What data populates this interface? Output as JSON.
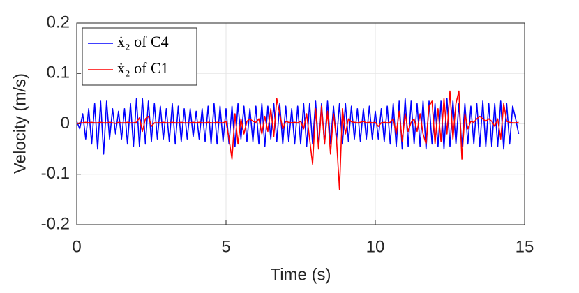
{
  "chart_data": {
    "type": "line",
    "xlabel": "Time (s)",
    "ylabel": "Velocity (m/s)",
    "xlim": [
      0,
      15
    ],
    "ylim": [
      -0.2,
      0.2
    ],
    "xticks": [
      0,
      5,
      10,
      15
    ],
    "yticks": [
      -0.2,
      -0.1,
      0,
      0.1,
      0.2
    ],
    "grid": true,
    "legend": "northwest",
    "x": [
      0,
      0.1,
      0.2,
      0.3,
      0.4,
      0.5,
      0.6,
      0.7,
      0.8,
      0.9,
      1,
      1.1,
      1.2,
      1.3,
      1.4,
      1.5,
      1.6,
      1.7,
      1.8,
      1.9,
      2,
      2.1,
      2.2,
      2.3,
      2.4,
      2.5,
      2.6,
      2.7,
      2.8,
      2.9,
      3,
      3.1,
      3.2,
      3.3,
      3.4,
      3.5,
      3.6,
      3.7,
      3.8,
      3.9,
      4,
      4.1,
      4.2,
      4.3,
      4.4,
      4.5,
      4.6,
      4.7,
      4.8,
      4.9,
      5,
      5.1,
      5.2,
      5.3,
      5.4,
      5.5,
      5.6,
      5.7,
      5.8,
      5.9,
      6,
      6.1,
      6.2,
      6.3,
      6.4,
      6.5,
      6.6,
      6.7,
      6.8,
      6.9,
      7,
      7.1,
      7.2,
      7.3,
      7.4,
      7.5,
      7.6,
      7.7,
      7.8,
      7.9,
      8,
      8.1,
      8.2,
      8.3,
      8.4,
      8.5,
      8.6,
      8.7,
      8.8,
      8.9,
      9,
      9.1,
      9.2,
      9.3,
      9.4,
      9.5,
      9.6,
      9.7,
      9.8,
      9.9,
      10,
      10.1,
      10.2,
      10.3,
      10.4,
      10.5,
      10.6,
      10.7,
      10.8,
      10.9,
      11,
      11.1,
      11.2,
      11.3,
      11.4,
      11.5,
      11.6,
      11.7,
      11.8,
      11.9,
      12,
      12.1,
      12.2,
      12.3,
      12.4,
      12.5,
      12.6,
      12.7,
      12.8,
      12.9,
      13,
      13.1,
      13.2,
      13.3,
      13.4,
      13.5,
      13.6,
      13.7,
      13.8,
      13.9,
      14,
      14.1,
      14.2,
      14.3,
      14.4,
      14.5,
      14.6,
      14.7,
      14.8
    ],
    "series": [
      {
        "name": "ẋ₂ of C4",
        "color": "#0000ff",
        "values": [
          0.005,
          -0.01,
          0.02,
          -0.03,
          0.03,
          -0.04,
          0.04,
          -0.05,
          0.045,
          -0.06,
          0.045,
          -0.03,
          0.03,
          -0.02,
          0.025,
          -0.03,
          0.03,
          -0.04,
          0.04,
          -0.045,
          0.05,
          -0.045,
          0.05,
          -0.04,
          0.045,
          -0.035,
          0.04,
          -0.03,
          0.035,
          -0.03,
          0.03,
          -0.035,
          0.04,
          -0.04,
          0.035,
          -0.035,
          0.03,
          -0.03,
          0.03,
          -0.025,
          0.025,
          -0.03,
          0.03,
          -0.035,
          0.035,
          -0.04,
          0.04,
          -0.04,
          0.035,
          -0.035,
          0.03,
          -0.04,
          0.035,
          -0.045,
          0.04,
          -0.03,
          0.035,
          -0.035,
          0.03,
          -0.035,
          0.035,
          -0.04,
          0.04,
          -0.045,
          0.035,
          -0.03,
          0.04,
          -0.035,
          0.04,
          -0.04,
          0.035,
          -0.035,
          0.03,
          -0.04,
          0.035,
          -0.04,
          0.04,
          -0.045,
          0.04,
          -0.04,
          0.045,
          -0.045,
          0.04,
          -0.04,
          0.045,
          -0.04,
          0.035,
          -0.035,
          0.04,
          -0.04,
          0.04,
          -0.035,
          0.035,
          -0.03,
          0.03,
          -0.035,
          0.03,
          -0.03,
          0.035,
          -0.03,
          0.025,
          -0.03,
          0.03,
          -0.035,
          0.035,
          -0.04,
          0.04,
          -0.045,
          0.045,
          -0.05,
          0.05,
          -0.045,
          0.045,
          -0.04,
          0.04,
          -0.045,
          0.045,
          -0.05,
          0.045,
          -0.04,
          0.04,
          -0.045,
          0.045,
          -0.05,
          0.05,
          -0.045,
          0.045,
          -0.04,
          0.04,
          -0.045,
          0.04,
          -0.04,
          0.035,
          -0.04,
          0.04,
          -0.045,
          0.045,
          -0.045,
          0.04,
          -0.045,
          0.04,
          -0.045,
          0.045,
          -0.05,
          0.04,
          -0.04,
          0.035,
          0.01,
          -0.02
        ]
      },
      {
        "name": "ẋ₂ of C1",
        "color": "#ff0000",
        "values": [
          0,
          0.002,
          0.002,
          0.003,
          0.002,
          0.003,
          0.002,
          0.002,
          0.003,
          0.002,
          0.002,
          0.003,
          0.002,
          0.001,
          0.003,
          0.002,
          0.002,
          0.003,
          0.002,
          0.002,
          0.003,
          0.012,
          -0.015,
          0.01,
          0.015,
          -0.005,
          0.002,
          0.002,
          0.002,
          0.003,
          0.002,
          0.002,
          0.003,
          0.002,
          0.002,
          0.003,
          0.002,
          0.002,
          0.002,
          0.003,
          0.002,
          0.003,
          0.002,
          0.002,
          0.003,
          0.002,
          0.002,
          0.003,
          0.002,
          0.002,
          0.005,
          -0.03,
          -0.07,
          0.02,
          -0.04,
          0.01,
          -0.02,
          0.005,
          0.01,
          0.005,
          0.003,
          0.01,
          -0.02,
          0.015,
          -0.015,
          0.03,
          -0.025,
          0.05,
          0.02,
          -0.01,
          0.005,
          0.003,
          0.002,
          0.003,
          0.002,
          0.005,
          -0.01,
          0.02,
          -0.03,
          -0.08,
          0.03,
          -0.05,
          0.035,
          -0.04,
          0.025,
          -0.06,
          0.02,
          -0.03,
          -0.13,
          0.03,
          -0.02,
          0.01,
          0.004,
          0.003,
          0.002,
          0.003,
          0.005,
          0.002,
          0.003,
          0.002,
          0.003,
          -0.005,
          0.002,
          0.003,
          0.002,
          0.003,
          0.01,
          -0.02,
          0.025,
          -0.035,
          0.02,
          -0.015,
          0.003,
          0.01,
          -0.015,
          0.02,
          -0.02,
          -0.04,
          0.035,
          0.045,
          -0.04,
          0.03,
          -0.035,
          0.05,
          -0.02,
          0.065,
          -0.03,
          0.04,
          0.065,
          -0.07,
          0.02,
          -0.01,
          0.005,
          0.003,
          0.01,
          0.015,
          0.01,
          0.005,
          0.01,
          0.005,
          -0.005,
          0.01,
          -0.03,
          0.04,
          0.005,
          0.003,
          0.002,
          0.002,
          0.003
        ]
      }
    ]
  }
}
